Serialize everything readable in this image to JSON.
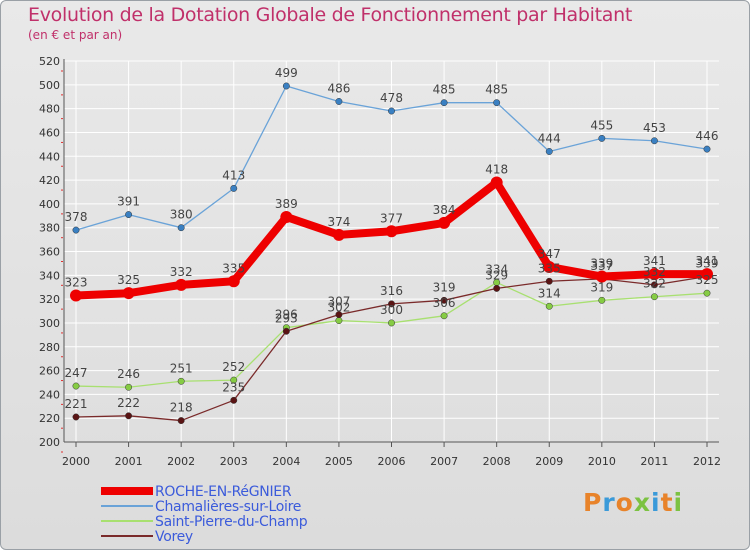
{
  "title": "Evolution de la Dotation Globale de Fonctionnement par Habitant",
  "subtitle": "(en € et par an)",
  "brand": "Proxiti",
  "colors": {
    "title": "#c0306a",
    "axis": "#555555",
    "grid": "#ffffff",
    "tick_red": "#e03030",
    "legend_text": "#3b5bdb"
  },
  "chart_data": {
    "type": "line",
    "title": "Evolution de la Dotation Globale de Fonctionnement par Habitant",
    "subtitle": "(en € et par an)",
    "xlabel": "",
    "ylabel": "",
    "ylim": [
      200,
      520
    ],
    "ytick_step": 20,
    "grid": true,
    "legend_position": "bottom-left",
    "x": [
      "2000",
      "2001",
      "2002",
      "2003",
      "2004",
      "2005",
      "2006",
      "2007",
      "2008",
      "2009",
      "2010",
      "2011",
      "2012"
    ],
    "series": [
      {
        "name": "ROCHE-EN-RéGNIER",
        "color": "#ee0000",
        "marker": "#ee0000",
        "width": 8,
        "values": [
          323,
          325,
          332,
          335,
          389,
          374,
          377,
          384,
          418,
          347,
          339,
          341,
          341
        ]
      },
      {
        "name": "Chamalières-sur-Loire",
        "color": "#6aa3d8",
        "marker": "#3a80c2",
        "width": 1.3,
        "values": [
          378,
          391,
          380,
          413,
          499,
          486,
          478,
          485,
          485,
          444,
          455,
          453,
          446
        ]
      },
      {
        "name": "Saint-Pierre-du-Champ",
        "color": "#a8e070",
        "marker": "#86cc44",
        "width": 1.3,
        "values": [
          247,
          246,
          251,
          252,
          296,
          302,
          300,
          306,
          334,
          314,
          319,
          322,
          325
        ]
      },
      {
        "name": "Vorey",
        "color": "#7a2a2a",
        "marker": "#5a1414",
        "width": 1.3,
        "values": [
          221,
          222,
          218,
          235,
          293,
          307,
          316,
          319,
          329,
          335,
          337,
          332,
          339
        ]
      }
    ]
  }
}
